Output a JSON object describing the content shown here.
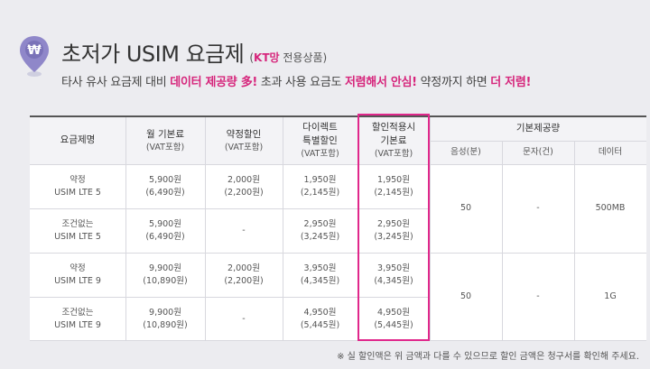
{
  "header": {
    "title": "초저가 USIM 요금제",
    "tag_brand": "KT망",
    "tag_rest": "전용상품",
    "subtitle": {
      "p1": "타사 유사 요금제 대비 ",
      "p2": "데이터 제공량 多!",
      "p3": " 초과 사용 요금도 ",
      "p4": "저렴해서 안심!",
      "p5": " 약정까지 하면 ",
      "p6": "더 저렴!"
    },
    "icon_symbol": "₩"
  },
  "table": {
    "columns": {
      "plan": "요금제명",
      "monthly": [
        "월 기본료",
        "(VAT포함)"
      ],
      "contract_discount": [
        "약정할인",
        "(VAT포함)"
      ],
      "direct_discount": [
        "다이렉트",
        "특별할인",
        "(VAT포함)"
      ],
      "applied_fee": [
        "할인적용시",
        "기본료",
        "(VAT포함)"
      ],
      "basic_offer": "기본제공량",
      "voice": "음성(분)",
      "sms": "문자(건)",
      "data": "데이터"
    },
    "rows": [
      {
        "plan": [
          "약정",
          "USIM LTE 5"
        ],
        "monthly": [
          "5,900원",
          "(6,490원)"
        ],
        "contract": [
          "2,000원",
          "(2,200원)"
        ],
        "direct": [
          "1,950원",
          "(2,145원)"
        ],
        "applied": [
          "1,950원",
          "(2,145원)"
        ]
      },
      {
        "plan": [
          "조건없는",
          "USIM LTE 5"
        ],
        "monthly": [
          "5,900원",
          "(6,490원)"
        ],
        "contract": [
          "-"
        ],
        "direct": [
          "2,950원",
          "(3,245원)"
        ],
        "applied": [
          "2,950원",
          "(3,245원)"
        ]
      },
      {
        "plan": [
          "약정",
          "USIM LTE 9"
        ],
        "monthly": [
          "9,900원",
          "(10,890원)"
        ],
        "contract": [
          "2,000원",
          "(2,200원)"
        ],
        "direct": [
          "3,950원",
          "(4,345원)"
        ],
        "applied": [
          "3,950원",
          "(4,345원)"
        ]
      },
      {
        "plan": [
          "조건없는",
          "USIM LTE 9"
        ],
        "monthly": [
          "9,900원",
          "(10,890원)"
        ],
        "contract": [
          "-"
        ],
        "direct": [
          "4,950원",
          "(5,445원)"
        ],
        "applied": [
          "4,950원",
          "(5,445원)"
        ]
      }
    ],
    "offers": [
      {
        "voice": "50",
        "sms": "-",
        "data": "500MB"
      },
      {
        "voice": "50",
        "sms": "-",
        "data": "1G"
      }
    ]
  },
  "footnote": "※ 실 할인액은 위 금액과 다를 수 있으므로 할인 금액은 청구서를 확인해 주세요.",
  "colors": {
    "accent": "#d6267c",
    "highlight_border": "#e0278b",
    "pin": "#8f87c9"
  }
}
